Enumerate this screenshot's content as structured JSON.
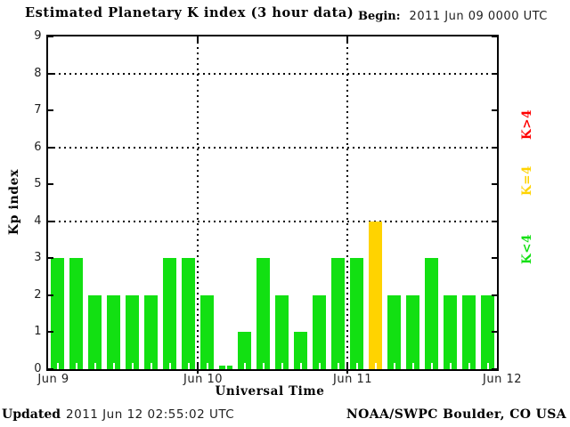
{
  "title": "Estimated Planetary K index (3 hour data)",
  "begin": {
    "label": "Begin:",
    "value": "2011 Jun 09 0000 UTC"
  },
  "footer": {
    "updated_label": "Updated",
    "updated_value": "2011 Jun 12 02:55:02 UTC",
    "source": "NOAA/SWPC Boulder, CO USA"
  },
  "legend": [
    {
      "label": "K>4",
      "color": "#ff0000"
    },
    {
      "label": "K=4",
      "color": "#ffd300"
    },
    {
      "label": "K<4",
      "color": "#12e012"
    }
  ],
  "chart_data": {
    "type": "bar",
    "title": "Estimated Planetary K index (3 hour data)",
    "xlabel": "Universal Time",
    "ylabel": "Kp index",
    "ylim": [
      0,
      9
    ],
    "yticks": [
      0,
      1,
      2,
      3,
      4,
      5,
      6,
      7,
      8,
      9
    ],
    "gridlines_y": [
      4,
      6,
      8
    ],
    "grid_style": "dotted",
    "legend_position": "right",
    "interval_hours": 3,
    "day_labels": [
      "Jun 9",
      "Jun 10",
      "Jun 11",
      "Jun 12"
    ],
    "series": [
      {
        "name": "Jun 9",
        "values": [
          3,
          3,
          2,
          2,
          2,
          2,
          3,
          3
        ]
      },
      {
        "name": "Jun 10",
        "values": [
          2,
          0,
          1,
          3,
          2,
          1,
          2,
          3
        ]
      },
      {
        "name": "Jun 11",
        "values": [
          3,
          4,
          2,
          2,
          3,
          2,
          2,
          2
        ]
      }
    ],
    "colors": {
      "k_lt_4": "#12e012",
      "k_eq_4": "#ffd300",
      "k_gt_4": "#ff0000"
    }
  }
}
